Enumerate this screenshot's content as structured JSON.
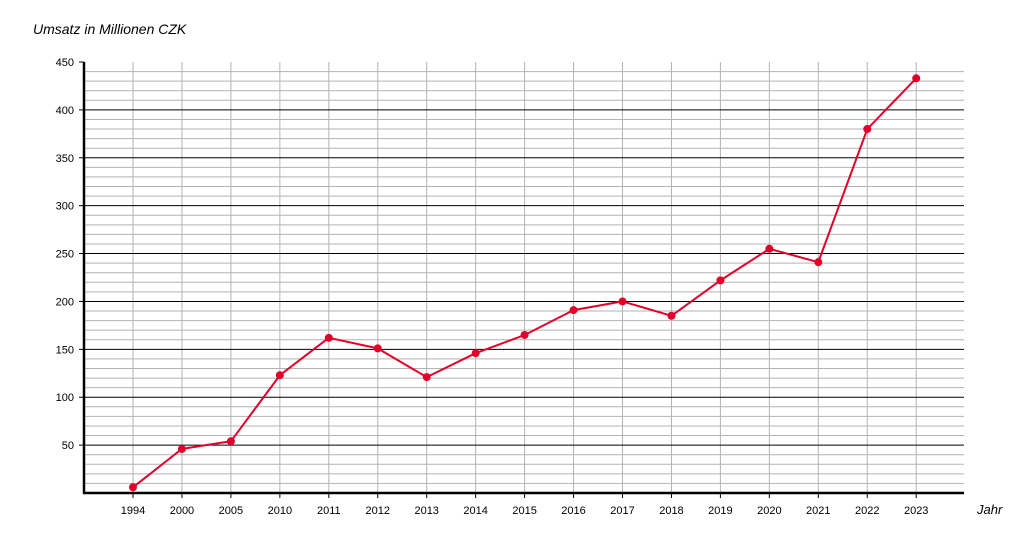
{
  "chart_data": {
    "type": "line",
    "title": "",
    "ylabel": "Umsatz in Millionen CZK",
    "xlabel": "Jahr",
    "categories": [
      "1994",
      "2000",
      "2005",
      "2010",
      "2011",
      "2012",
      "2013",
      "2014",
      "2015",
      "2016",
      "2017",
      "2018",
      "2019",
      "2020",
      "2021",
      "2022",
      "2023"
    ],
    "series": [
      {
        "values": [
          6,
          46,
          54,
          123,
          162,
          151,
          121,
          146,
          165,
          191,
          200,
          185,
          222,
          255,
          241,
          380,
          433
        ]
      }
    ],
    "ylim": [
      0,
      450
    ],
    "yticks": [
      50,
      100,
      150,
      200,
      250,
      300,
      350,
      400,
      450
    ],
    "minor_ystep": 10,
    "grid": true,
    "legend": "none",
    "colors": {
      "line": "#e0002a",
      "major_grid": "#000000",
      "minor_grid": "#b3b3b3",
      "axis": "#000000"
    }
  }
}
